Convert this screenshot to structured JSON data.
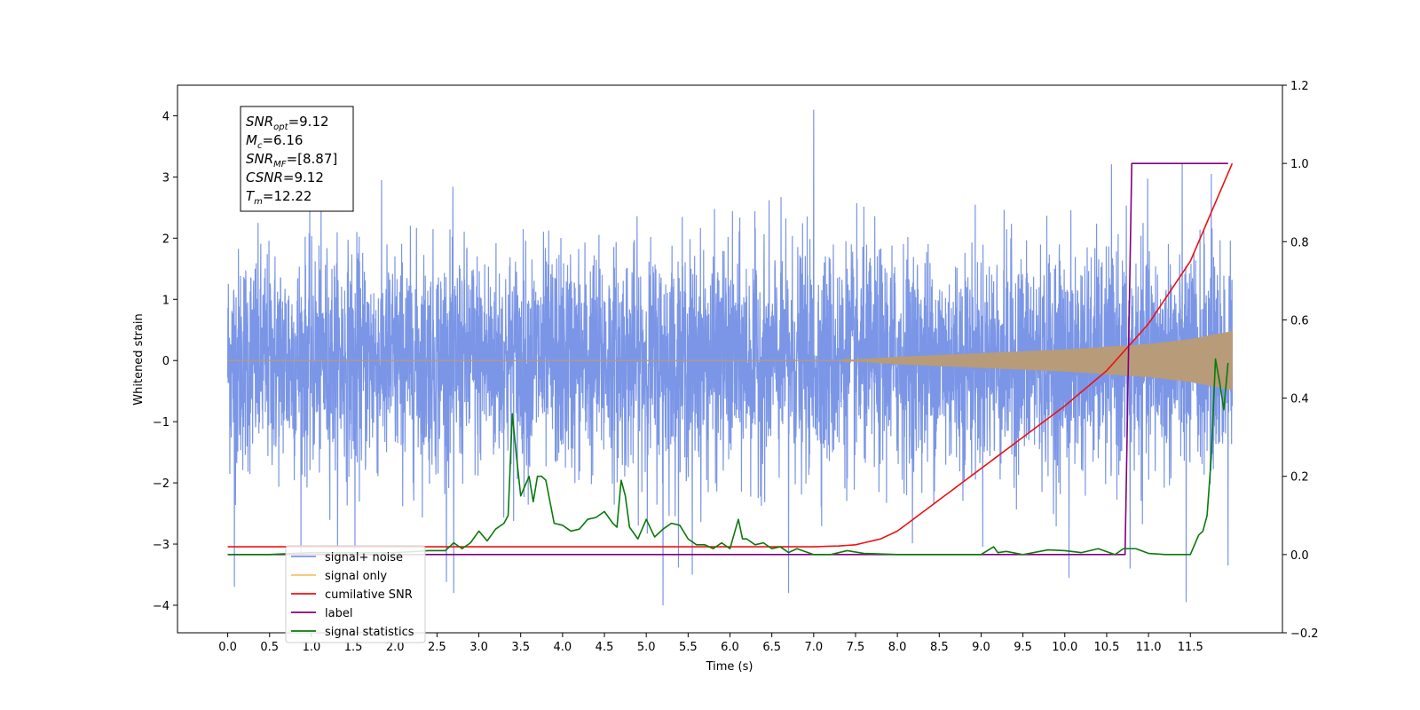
{
  "chart_data": {
    "type": "line",
    "title": "",
    "xlabel": "Time (s)",
    "ylabel": "Whitened strain",
    "xlim": [
      -0.6,
      12.6
    ],
    "ylim": [
      -4.45,
      4.5
    ],
    "y2lim": [
      -0.2,
      1.2
    ],
    "grid": false,
    "legend_position": "lower-left",
    "x_ticks": [
      "0.0",
      "0.5",
      "1.0",
      "1.5",
      "2.0",
      "2.5",
      "3.0",
      "3.5",
      "4.0",
      "4.5",
      "5.0",
      "5.5",
      "6.0",
      "6.5",
      "7.0",
      "7.5",
      "8.0",
      "8.5",
      "9.0",
      "9.5",
      "10.0",
      "10.5",
      "11.0",
      "11.5"
    ],
    "y_ticks": [
      "4",
      "3",
      "2",
      "1",
      "0",
      "−1",
      "−2",
      "−3",
      "−4"
    ],
    "y2_ticks": [
      "1.2",
      "1.0",
      "0.8",
      "0.6",
      "0.4",
      "0.2",
      "0.0",
      "−0.2"
    ],
    "info_box": [
      {
        "main": "SNR",
        "sub": "opt",
        "value": "=9.12"
      },
      {
        "main": "M",
        "sub": "c",
        "value": "=6.16"
      },
      {
        "main": "SNR",
        "sub": "MF",
        "value": "=[8.87]"
      },
      {
        "main": "CSNR",
        "sub": "",
        "value": "=9.12"
      },
      {
        "main": "T",
        "sub": "m",
        "value": "=12.22"
      }
    ],
    "series": [
      {
        "name": "signal+ noise",
        "color": "#7b96e6",
        "axis": "left",
        "description_stats": {
          "x_range": [
            0.0,
            12.0
          ],
          "approx_std": 0.9,
          "max": 4.1,
          "min": -4.0
        },
        "peaks": [
          {
            "x": 0.08,
            "y": -3.7
          },
          {
            "x": 1.52,
            "y": -3.1
          },
          {
            "x": 2.7,
            "y": -3.8
          },
          {
            "x": 5.2,
            "y": -4.0
          },
          {
            "x": 5.55,
            "y": -3.5
          },
          {
            "x": 6.7,
            "y": -3.8
          },
          {
            "x": 7.0,
            "y": 4.1
          },
          {
            "x": 10.05,
            "y": -3.55
          },
          {
            "x": 10.78,
            "y": -3.4
          },
          {
            "x": 11.45,
            "y": -3.95
          },
          {
            "x": 11.95,
            "y": -3.35
          },
          {
            "x": 11.75,
            "y": 3.05
          }
        ]
      },
      {
        "name": "signal only",
        "color": "#f6c26a",
        "axis": "left",
        "envelope": {
          "x": [
            0.0,
            7.3,
            8.0,
            9.0,
            10.0,
            11.0,
            11.5,
            12.0
          ],
          "amp": [
            0.0,
            0.0,
            0.06,
            0.12,
            0.18,
            0.27,
            0.35,
            0.48
          ]
        }
      },
      {
        "name": "cumilative SNR",
        "color": "#ee1111",
        "axis": "right",
        "x": [
          0.0,
          7.0,
          7.3,
          7.5,
          7.8,
          8.0,
          8.5,
          9.0,
          9.5,
          10.0,
          10.5,
          11.0,
          11.5,
          12.0
        ],
        "y": [
          0.02,
          0.02,
          0.022,
          0.025,
          0.04,
          0.06,
          0.14,
          0.22,
          0.3,
          0.38,
          0.47,
          0.59,
          0.75,
          1.0
        ]
      },
      {
        "name": "label",
        "color": "#800080",
        "axis": "right",
        "x": [
          0.0,
          10.72,
          10.8,
          11.95
        ],
        "y": [
          0.0,
          0.0,
          1.0,
          1.0
        ]
      },
      {
        "name": "signal statistics",
        "color": "#0a7a0a",
        "axis": "right",
        "x": [
          0.0,
          0.5,
          1.0,
          1.5,
          2.0,
          2.4,
          2.6,
          2.7,
          2.8,
          2.9,
          3.0,
          3.1,
          3.2,
          3.3,
          3.35,
          3.4,
          3.45,
          3.5,
          3.6,
          3.65,
          3.7,
          3.75,
          3.8,
          3.9,
          4.0,
          4.1,
          4.2,
          4.3,
          4.4,
          4.5,
          4.6,
          4.65,
          4.7,
          4.75,
          4.8,
          4.9,
          5.0,
          5.1,
          5.2,
          5.3,
          5.4,
          5.5,
          5.6,
          5.7,
          5.8,
          5.9,
          6.0,
          6.1,
          6.15,
          6.2,
          6.3,
          6.4,
          6.5,
          6.6,
          6.7,
          6.8,
          7.0,
          7.2,
          7.4,
          7.6,
          8.0,
          9.0,
          9.15,
          9.2,
          9.3,
          9.5,
          9.8,
          10.0,
          10.2,
          10.4,
          10.6,
          10.7,
          10.85,
          11.0,
          11.2,
          11.5,
          11.6,
          11.65,
          11.7,
          11.75,
          11.8,
          11.85,
          11.9,
          11.95
        ],
        "y": [
          0.0,
          0.0,
          0.005,
          0.005,
          0.005,
          0.01,
          0.01,
          0.03,
          0.015,
          0.03,
          0.06,
          0.035,
          0.065,
          0.08,
          0.1,
          0.36,
          0.25,
          0.15,
          0.2,
          0.135,
          0.2,
          0.2,
          0.19,
          0.08,
          0.075,
          0.06,
          0.065,
          0.09,
          0.095,
          0.11,
          0.08,
          0.07,
          0.19,
          0.15,
          0.07,
          0.04,
          0.09,
          0.045,
          0.065,
          0.08,
          0.075,
          0.04,
          0.025,
          0.025,
          0.015,
          0.03,
          0.015,
          0.09,
          0.04,
          0.04,
          0.025,
          0.03,
          0.015,
          0.02,
          0.005,
          0.015,
          0.0,
          0.0,
          0.01,
          0.003,
          0.0,
          0.0,
          0.02,
          0.005,
          0.008,
          0.0,
          0.012,
          0.01,
          0.005,
          0.015,
          0.0,
          0.015,
          0.015,
          0.003,
          0.0,
          0.0,
          0.05,
          0.06,
          0.1,
          0.25,
          0.5,
          0.44,
          0.37,
          0.49
        ]
      }
    ]
  },
  "legend": {
    "items": [
      {
        "label": "signal+ noise",
        "color": "#7b96e6"
      },
      {
        "label": "signal only",
        "color": "#f6c26a"
      },
      {
        "label": "cumilative SNR",
        "color": "#ee1111"
      },
      {
        "label": "label",
        "color": "#800080"
      },
      {
        "label": "signal statistics",
        "color": "#0a7a0a"
      }
    ]
  }
}
